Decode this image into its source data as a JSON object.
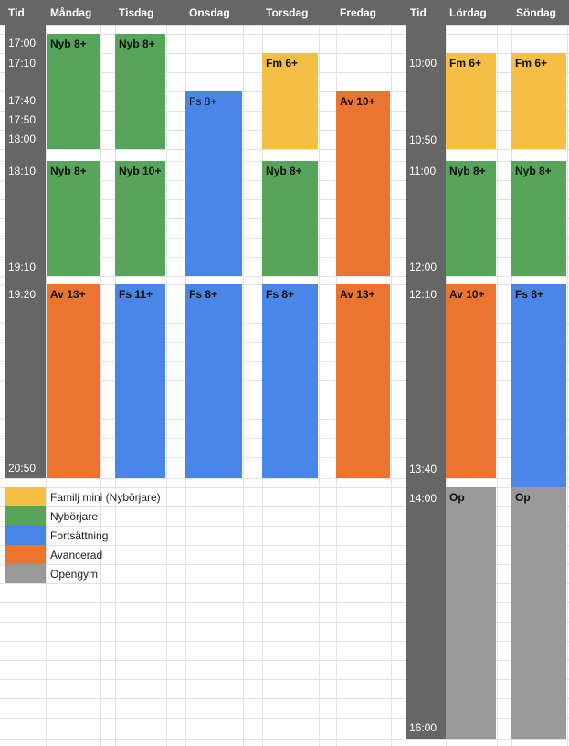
{
  "header": {
    "columns": [
      "Tid",
      "Måndag",
      "Tisdag",
      "Onsdag",
      "Torsdag",
      "Fredag",
      "Tid",
      "Lördag",
      "Söndag"
    ]
  },
  "times": {
    "left": [
      "17:00",
      "17:10",
      "17:40",
      "17:50",
      "18:00",
      "18:10",
      "19:10",
      "19:20",
      "20:50"
    ],
    "right": [
      "10:00",
      "10:50",
      "11:00",
      "12:00",
      "12:10",
      "13:40",
      "14:00",
      "16:00"
    ]
  },
  "blocks": [
    {
      "label": "Nyb 8+",
      "color": "#57a55a"
    },
    {
      "label": "Nyb 8+",
      "color": "#57a55a"
    },
    {
      "label": "Av 13+",
      "color": "#ec7431"
    },
    {
      "label": "Nyb 8+",
      "color": "#57a55a"
    },
    {
      "label": "Nyb 10+",
      "color": "#57a55a"
    },
    {
      "label": "Fs 11+",
      "color": "#4a86e8"
    },
    {
      "label": "Fs 8+",
      "color": "#4a86e8"
    },
    {
      "label": "Fs 8+",
      "color": "#4a86e8"
    },
    {
      "label": "Fm 6+",
      "color": "#f4bf44"
    },
    {
      "label": "Nyb 8+",
      "color": "#57a55a"
    },
    {
      "label": "Fs 8+",
      "color": "#4a86e8"
    },
    {
      "label": "Av 10+",
      "color": "#ec7431"
    },
    {
      "label": "Av 13+",
      "color": "#ec7431"
    },
    {
      "label": "Fm 6+",
      "color": "#f4bf44"
    },
    {
      "label": "Nyb 8+",
      "color": "#57a55a"
    },
    {
      "label": "Av 10+",
      "color": "#ec7431"
    },
    {
      "label": "Op",
      "color": "#999999"
    },
    {
      "label": "Fm 6+",
      "color": "#f4bf44"
    },
    {
      "label": "Nyb 8+",
      "color": "#57a55a"
    },
    {
      "label": "Fs 8+",
      "color": "#4a86e8"
    },
    {
      "label": "Op",
      "color": "#999999"
    }
  ],
  "legend": [
    {
      "label": "Familj mini (Nybörjare)",
      "color": "#f4bf44"
    },
    {
      "label": "Nybörjare",
      "color": "#57a55a"
    },
    {
      "label": "Fortsättning",
      "color": "#4a86e8"
    },
    {
      "label": "Avancerad",
      "color": "#ec7431"
    },
    {
      "label": "Opengym",
      "color": "#999999"
    }
  ]
}
